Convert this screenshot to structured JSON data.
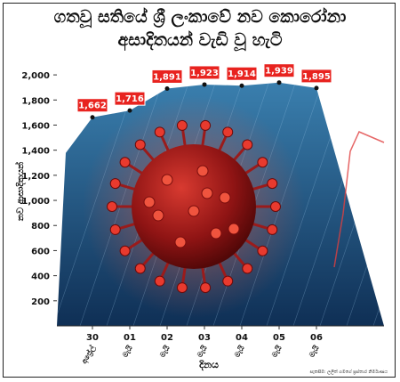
{
  "chart_data": {
    "type": "area",
    "title_lines": [
      "ගතවූ සතියේ ශ්‍රී ලංකාවේ නව කොරෝනා",
      "අසාදිතයන් වැඩි වූ හැටි"
    ],
    "categories": [
      {
        "day": "30",
        "month": "අප්‍රේල්"
      },
      {
        "day": "01",
        "month": "මැයි"
      },
      {
        "day": "02",
        "month": "මැයි"
      },
      {
        "day": "03",
        "month": "මැයි"
      },
      {
        "day": "04",
        "month": "මැයි"
      },
      {
        "day": "05",
        "month": "මැයි"
      },
      {
        "day": "06",
        "month": "මැයි"
      }
    ],
    "values": [
      1662,
      1716,
      1891,
      1923,
      1914,
      1939,
      1895
    ],
    "data_labels": [
      "1,662",
      "1,716",
      "1,891",
      "1,923",
      "1,914",
      "1,939",
      "1,895"
    ],
    "y_ticks": [
      "200",
      "400",
      "600",
      "800",
      "1,000",
      "1,200",
      "1,400",
      "1,600",
      "1,800",
      "2,000"
    ],
    "ylim": [
      0,
      2100
    ],
    "xlabel": "දිනය",
    "ylabel": "නව ආසාදිතයන්",
    "grid": false,
    "colors": {
      "area_top": "#3a7fae",
      "area_bottom": "#0f2f55",
      "label_box": "#e8231f",
      "label_text": "#ffffff",
      "virus": "#b01818",
      "line": "#e04040"
    }
  },
  "credit": "සැකසීම: ලලිත් ගමගේ ප්‍රස්තාර නිර්මාණය"
}
